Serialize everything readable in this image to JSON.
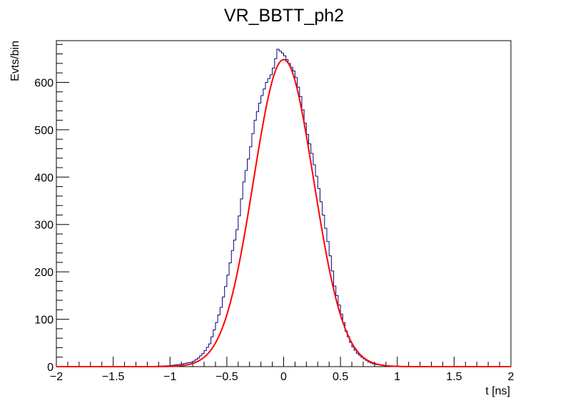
{
  "chart_data": {
    "type": "line",
    "title": "VR_BBTT_ph2",
    "xlabel": "t [ns]",
    "ylabel": "Evts/bin",
    "xlim": [
      -2,
      2
    ],
    "ylim": [
      0,
      688
    ],
    "x_ticks": [
      "−2",
      "−1.5",
      "−1",
      "−0.5",
      "0",
      "0.5",
      "1",
      "1.5",
      "2"
    ],
    "y_ticks": [
      "0",
      "100",
      "200",
      "300",
      "400",
      "500",
      "600"
    ],
    "grid": false,
    "legend": "none",
    "series": [
      {
        "kind": "histogram",
        "color": "#000080",
        "bin_width": 0.02,
        "x": [
          -1.2,
          -1.1,
          -1.0,
          -0.9,
          -0.8,
          -0.75,
          -0.7,
          -0.65,
          -0.6,
          -0.55,
          -0.5,
          -0.45,
          -0.4,
          -0.35,
          -0.3,
          -0.25,
          -0.2,
          -0.15,
          -0.1,
          -0.05,
          0.0,
          0.05,
          0.1,
          0.15,
          0.2,
          0.25,
          0.3,
          0.35,
          0.4,
          0.45,
          0.5,
          0.55,
          0.6,
          0.65,
          0.7,
          0.75,
          0.8,
          0.9,
          1.0,
          1.1
        ],
        "values": [
          0,
          1,
          2,
          5,
          10,
          18,
          30,
          48,
          85,
          125,
          180,
          245,
          300,
          390,
          450,
          520,
          565,
          600,
          620,
          670,
          660,
          640,
          620,
          570,
          500,
          450,
          390,
          320,
          250,
          170,
          120,
          75,
          45,
          28,
          18,
          10,
          5,
          2,
          1,
          0
        ]
      },
      {
        "kind": "fit",
        "color": "#ff0000",
        "amplitude": 648,
        "mean": 0.0,
        "sigma": 0.265
      }
    ]
  },
  "colors": {
    "background": "#ffffff",
    "frame": "#000000",
    "histogram": "#000080",
    "fit": "#ff0000"
  }
}
